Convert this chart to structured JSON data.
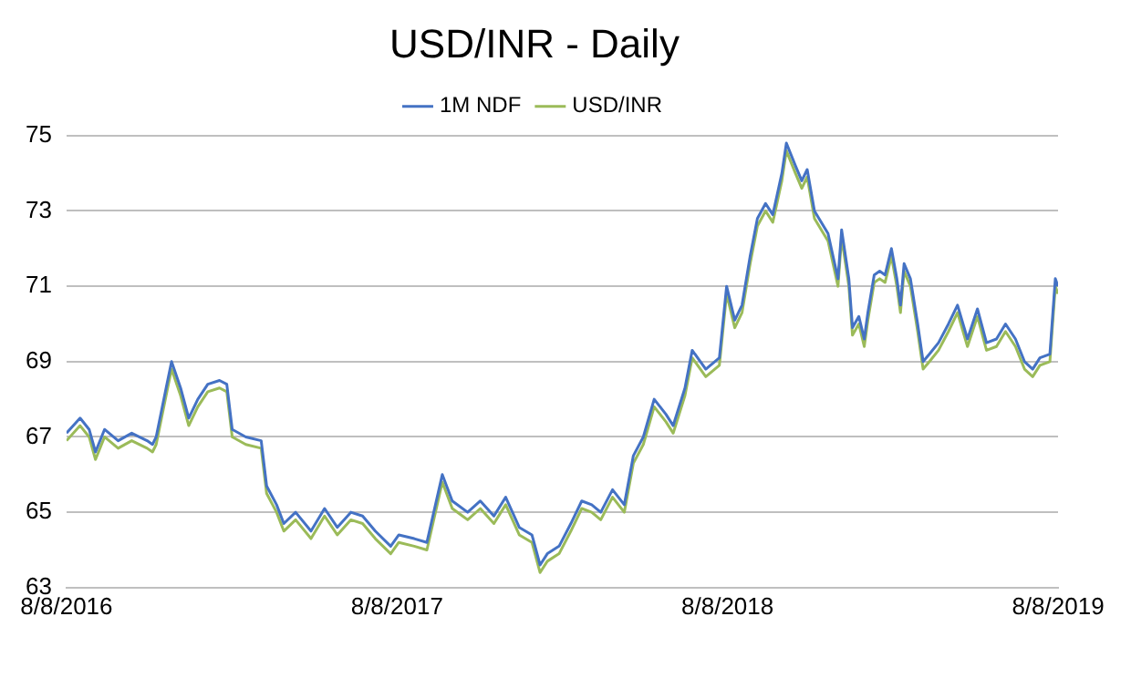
{
  "chart_data": {
    "type": "line",
    "title": "USD/INR - Daily",
    "legend": "top",
    "grid": "y",
    "marker": "none",
    "x": [
      "2016-08-08",
      "2016-08-23",
      "2016-09-02",
      "2016-09-09",
      "2016-09-19",
      "2016-10-04",
      "2016-10-19",
      "2016-11-05",
      "2016-11-11",
      "2016-11-15",
      "2016-11-26",
      "2016-12-02",
      "2016-12-12",
      "2016-12-21",
      "2016-12-31",
      "2017-01-11",
      "2017-01-24",
      "2017-02-01",
      "2017-02-07",
      "2017-02-22",
      "2017-03-11",
      "2017-03-17",
      "2017-03-28",
      "2017-04-05",
      "2017-04-18",
      "2017-05-05",
      "2017-05-20",
      "2017-06-03",
      "2017-06-18",
      "2017-07-01",
      "2017-07-15",
      "2017-08-01",
      "2017-08-10",
      "2017-08-27",
      "2017-09-10",
      "2017-09-27",
      "2017-10-08",
      "2017-10-25",
      "2017-11-08",
      "2017-11-23",
      "2017-12-06",
      "2017-12-21",
      "2018-01-04",
      "2018-01-13",
      "2018-01-21",
      "2018-02-03",
      "2018-02-16",
      "2018-02-28",
      "2018-03-11",
      "2018-03-21",
      "2018-04-03",
      "2018-04-16",
      "2018-04-26",
      "2018-05-07",
      "2018-05-19",
      "2018-06-01",
      "2018-06-09",
      "2018-06-22",
      "2018-06-30",
      "2018-07-15",
      "2018-07-30",
      "2018-08-07",
      "2018-08-16",
      "2018-08-24",
      "2018-09-02",
      "2018-09-10",
      "2018-09-19",
      "2018-09-27",
      "2018-10-07",
      "2018-10-12",
      "2018-10-22",
      "2018-10-29",
      "2018-11-04",
      "2018-11-12",
      "2018-11-27",
      "2018-12-08",
      "2018-12-12",
      "2018-12-20",
      "2018-12-24",
      "2018-12-31",
      "2019-01-06",
      "2019-01-10",
      "2019-01-17",
      "2019-01-23",
      "2019-01-29",
      "2019-02-05",
      "2019-02-11",
      "2019-02-15",
      "2019-02-19",
      "2019-02-26",
      "2019-03-06",
      "2019-03-12",
      "2019-03-19",
      "2019-03-29",
      "2019-04-09",
      "2019-04-19",
      "2019-04-30",
      "2019-05-11",
      "2019-05-21",
      "2019-06-01",
      "2019-06-11",
      "2019-06-22",
      "2019-07-02",
      "2019-07-11",
      "2019-07-19",
      "2019-07-30",
      "2019-08-05",
      "2019-08-08"
    ],
    "xlim": [
      "2016-08-08",
      "2019-08-08"
    ],
    "xticks": [
      {
        "value": "2016-08-08",
        "label": "8/8/2016"
      },
      {
        "value": "2017-08-08",
        "label": "8/8/2017"
      },
      {
        "value": "2018-08-08",
        "label": "8/8/2018"
      },
      {
        "value": "2019-08-08",
        "label": "8/8/2019"
      }
    ],
    "ylim": [
      63,
      75
    ],
    "yticks": [
      63,
      65,
      67,
      69,
      71,
      73,
      75
    ],
    "series": [
      {
        "name": "1M NDF",
        "color": "#4472c4",
        "values": [
          67.1,
          67.5,
          67.2,
          66.6,
          67.2,
          66.9,
          67.1,
          66.9,
          66.8,
          67.0,
          68.3,
          69.0,
          68.3,
          67.5,
          68.0,
          68.4,
          68.5,
          68.4,
          67.2,
          67.0,
          66.9,
          65.7,
          65.2,
          64.7,
          65.0,
          64.5,
          65.1,
          64.6,
          65.0,
          64.9,
          64.5,
          64.1,
          64.4,
          64.3,
          64.2,
          66.0,
          65.3,
          65.0,
          65.3,
          64.9,
          65.4,
          64.6,
          64.4,
          63.6,
          63.9,
          64.1,
          64.7,
          65.3,
          65.2,
          65.0,
          65.6,
          65.2,
          66.5,
          67.0,
          68.0,
          67.6,
          67.3,
          68.3,
          69.3,
          68.8,
          69.1,
          71.0,
          70.1,
          70.5,
          71.8,
          72.8,
          73.2,
          72.9,
          74.0,
          74.8,
          74.2,
          73.8,
          74.1,
          73.0,
          72.4,
          71.2,
          72.5,
          71.2,
          69.9,
          70.2,
          69.6,
          70.3,
          71.3,
          71.4,
          71.3,
          72.0,
          71.2,
          70.5,
          71.6,
          71.2,
          70.0,
          69.0,
          69.2,
          69.5,
          70.0,
          70.5,
          69.6,
          70.4,
          69.5,
          69.6,
          70.0,
          69.6,
          69.0,
          68.8,
          69.1,
          69.2,
          71.2,
          71.0
        ]
      },
      {
        "name": "USD/INR",
        "color": "#9bbb59",
        "values": [
          66.9,
          67.3,
          67.0,
          66.4,
          67.0,
          66.7,
          66.9,
          66.7,
          66.6,
          66.8,
          68.1,
          68.8,
          68.1,
          67.3,
          67.8,
          68.2,
          68.3,
          68.2,
          67.0,
          66.8,
          66.7,
          65.5,
          65.0,
          64.5,
          64.8,
          64.3,
          64.9,
          64.4,
          64.8,
          64.7,
          64.3,
          63.9,
          64.2,
          64.1,
          64.0,
          65.8,
          65.1,
          64.8,
          65.1,
          64.7,
          65.2,
          64.4,
          64.2,
          63.4,
          63.7,
          63.9,
          64.5,
          65.1,
          65.0,
          64.8,
          65.4,
          65.0,
          66.3,
          66.8,
          67.8,
          67.4,
          67.1,
          68.1,
          69.1,
          68.6,
          68.9,
          70.8,
          69.9,
          70.3,
          71.6,
          72.6,
          73.0,
          72.7,
          73.8,
          74.6,
          74.0,
          73.6,
          73.9,
          72.8,
          72.2,
          71.0,
          72.3,
          71.0,
          69.7,
          70.0,
          69.4,
          70.1,
          71.1,
          71.2,
          71.1,
          71.8,
          71.0,
          70.3,
          71.4,
          71.0,
          69.8,
          68.8,
          69.0,
          69.3,
          69.8,
          70.3,
          69.4,
          70.2,
          69.3,
          69.4,
          69.8,
          69.4,
          68.8,
          68.6,
          68.9,
          69.0,
          71.0,
          70.8
        ]
      }
    ]
  }
}
